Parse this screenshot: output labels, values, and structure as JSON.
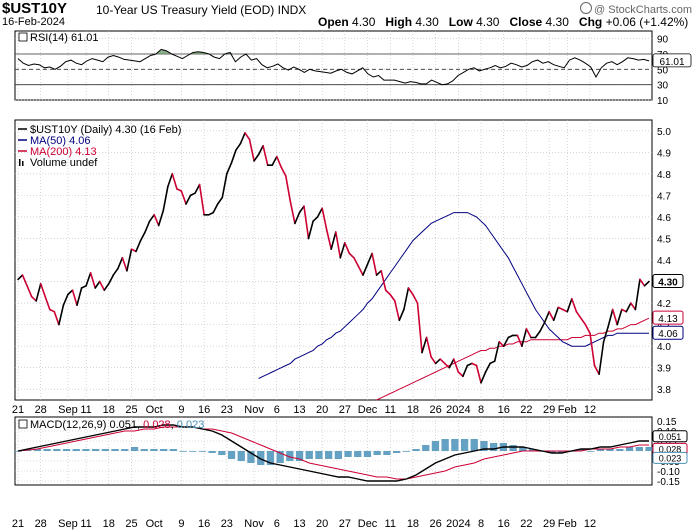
{
  "header": {
    "symbol": "$UST10Y",
    "description": "10-Year US Treasury Yield (EOD)",
    "exchange": "INDX",
    "date": "16-Feb-2024",
    "open_label": "Open",
    "open": "4.30",
    "high_label": "High",
    "high": "4.30",
    "low_label": "Low",
    "low": "4.30",
    "close_label": "Close",
    "close": "4.30",
    "chg_label": "Chg",
    "chg": "+0.06 (+1.42%)",
    "copyright": "@ StockCharts.com"
  },
  "colors": {
    "price_up": "#000000",
    "price_down": "#cc0033",
    "ma50": "#000080",
    "ma200": "#cc0033",
    "macd_hist": "#4a90b8",
    "rsi_line": "#000000",
    "grid": "#bbbbbb"
  },
  "chart_data": [
    {
      "type": "line",
      "panel": "rsi",
      "legend": "RSI(14) 61.01",
      "ylim": [
        10,
        100
      ],
      "ticks": [
        "90",
        "70",
        "50",
        "30",
        "10"
      ],
      "tick_values": [
        90,
        70,
        50,
        30,
        10
      ],
      "reference_lines": [
        70,
        50,
        30
      ],
      "current_label": "61.01",
      "values": [
        64,
        58,
        55,
        57,
        56,
        52,
        53,
        50,
        54,
        60,
        62,
        58,
        56,
        61,
        64,
        62,
        60,
        66,
        68,
        66,
        63,
        62,
        61,
        60,
        64,
        68,
        70,
        76,
        74,
        70,
        67,
        64,
        68,
        72,
        73,
        72,
        70,
        66,
        64,
        70,
        72,
        60,
        66,
        70,
        62,
        64,
        56,
        52,
        54,
        57,
        52,
        49,
        53,
        50,
        46,
        50,
        48,
        47,
        46,
        45,
        48,
        50,
        46,
        44,
        48,
        52,
        44,
        40,
        42,
        36,
        36,
        36,
        34,
        32,
        34,
        33,
        31,
        31,
        36,
        33,
        30,
        31,
        35,
        42,
        46,
        50,
        52,
        48,
        50,
        52,
        55,
        52,
        54,
        58,
        56,
        53,
        55,
        60,
        62,
        58,
        60,
        56,
        54,
        52,
        62,
        65,
        62,
        58,
        53,
        40,
        52,
        58,
        60,
        56,
        60,
        65,
        64,
        62,
        63,
        61
      ]
    },
    {
      "type": "line",
      "panel": "price",
      "ylim": [
        3.75,
        5.05
      ],
      "ticks": [
        "5.0",
        "4.9",
        "4.8",
        "4.7",
        "4.6",
        "4.5",
        "4.4",
        "4.3",
        "4.2",
        "4.1",
        "4.0",
        "3.9",
        "3.8"
      ],
      "tick_values": [
        5.0,
        4.9,
        4.8,
        4.7,
        4.6,
        4.5,
        4.4,
        4.3,
        4.2,
        4.1,
        4.0,
        3.9,
        3.8
      ],
      "x_labels": [
        "21",
        "28",
        "Sep",
        "11",
        "18",
        "25",
        "Oct",
        "9",
        "16",
        "23",
        "Nov",
        "6",
        "13",
        "20",
        "27",
        "Dec",
        "11",
        "18",
        "26",
        "2024",
        "8",
        "16",
        "22",
        "29",
        "Feb",
        "12"
      ],
      "x_label_index": [
        0,
        5,
        11,
        15,
        20,
        25,
        30,
        36,
        41,
        46,
        52,
        57,
        62,
        67,
        72,
        77,
        82,
        87,
        92,
        97,
        102,
        107,
        112,
        117,
        121,
        126
      ],
      "legend": [
        {
          "label": "$UST10Y (Daily) 4.30 (16 Feb)",
          "color": "#000000"
        },
        {
          "label": "MA(50) 4.06",
          "color": "#000080"
        },
        {
          "label": "MA(200) 4.13",
          "color": "#cc0033"
        },
        {
          "label": "Volume undef",
          "color": "#000000"
        }
      ],
      "series": [
        {
          "values": [
            4.31,
            4.33,
            4.28,
            4.23,
            4.21,
            4.29,
            4.23,
            4.17,
            4.16,
            4.1,
            4.19,
            4.24,
            4.26,
            4.19,
            4.27,
            4.28,
            4.34,
            4.27,
            4.3,
            4.26,
            4.29,
            4.33,
            4.36,
            4.41,
            4.35,
            4.45,
            4.44,
            4.49,
            4.53,
            4.58,
            4.61,
            4.56,
            4.63,
            4.74,
            4.8,
            4.73,
            4.72,
            4.66,
            4.7,
            4.71,
            4.75,
            4.61,
            4.61,
            4.62,
            4.66,
            4.69,
            4.8,
            4.85,
            4.91,
            4.94,
            4.99,
            4.96,
            4.86,
            4.89,
            4.93,
            4.84,
            4.84,
            4.88,
            4.83,
            4.79,
            4.67,
            4.57,
            4.62,
            4.65,
            4.5,
            4.58,
            4.6,
            4.64,
            4.54,
            4.45,
            4.53,
            4.41,
            4.48,
            4.43,
            4.41,
            4.37,
            4.33,
            4.38,
            4.43,
            4.33,
            4.35,
            4.26,
            4.24,
            4.21,
            4.12,
            4.17,
            4.27,
            4.24,
            4.2,
            3.97,
            4.04,
            3.95,
            3.92,
            3.94,
            3.92,
            3.9,
            3.94,
            3.88,
            3.86,
            3.91,
            3.92,
            3.91,
            3.83,
            3.88,
            3.92,
            3.93,
            4.02,
            4.0,
            4.04,
            4.05,
            4.05,
            4.0,
            4.08,
            4.04,
            4.04,
            4.07,
            4.11,
            4.16,
            4.12,
            4.18,
            4.17,
            4.16,
            4.22,
            4.16,
            4.13,
            4.1,
            4.06,
            3.91,
            3.87,
            4.02,
            4.09,
            4.17,
            4.1,
            4.17,
            4.16,
            4.2,
            4.17,
            4.31,
            4.28,
            4.3
          ]
        },
        {
          "name": "MA(50)",
          "values": [
            3.85,
            3.86,
            3.87,
            3.88,
            3.89,
            3.9,
            3.91,
            3.92,
            3.94,
            3.95,
            3.96,
            3.97,
            3.98,
            4.0,
            4.01,
            4.03,
            4.04,
            4.06,
            4.07,
            4.09,
            4.11,
            4.13,
            4.15,
            4.17,
            4.2,
            4.22,
            4.25,
            4.28,
            4.31,
            4.34,
            4.37,
            4.4,
            4.43,
            4.46,
            4.49,
            4.51,
            4.53,
            4.55,
            4.57,
            4.58,
            4.59,
            4.6,
            4.61,
            4.62,
            4.62,
            4.62,
            4.62,
            4.61,
            4.6,
            4.58,
            4.56,
            4.53,
            4.5,
            4.47,
            4.44,
            4.41,
            4.37,
            4.33,
            4.29,
            4.25,
            4.21,
            4.17,
            4.14,
            4.11,
            4.08,
            4.06,
            4.04,
            4.02,
            4.01,
            4.0,
            4.0,
            4.0,
            4.0,
            4.01,
            4.02,
            4.03,
            4.04,
            4.05,
            4.05,
            4.06,
            4.06,
            4.06,
            4.06,
            4.06,
            4.06,
            4.06,
            4.06
          ]
        },
        {
          "name": "MA(200)",
          "values": [
            3.75,
            3.76,
            3.77,
            3.78,
            3.79,
            3.8,
            3.81,
            3.82,
            3.83,
            3.84,
            3.85,
            3.86,
            3.87,
            3.88,
            3.89,
            3.9,
            3.91,
            3.92,
            3.93,
            3.94,
            3.95,
            3.96,
            3.97,
            3.98,
            3.98,
            3.99,
            3.99,
            4.0,
            4.0,
            4.01,
            4.01,
            4.02,
            4.02,
            4.02,
            4.03,
            4.03,
            4.03,
            4.03,
            4.03,
            4.03,
            4.03,
            4.03,
            4.03,
            4.04,
            4.04,
            4.04,
            4.05,
            4.05,
            4.05,
            4.06,
            4.06,
            4.07,
            4.07,
            4.08,
            4.08,
            4.09,
            4.1,
            4.1,
            4.11,
            4.12,
            4.13
          ]
        }
      ],
      "price_tags": [
        {
          "label": "4.30",
          "value": 4.3,
          "style": "dark"
        },
        {
          "label": "4.13",
          "value": 4.13,
          "style": "red"
        },
        {
          "label": "4.06",
          "value": 4.06,
          "style": "blue"
        }
      ]
    },
    {
      "type": "line",
      "panel": "macd",
      "legend": {
        "prefix": "MACD(12,26,9)",
        "macd": "0.051",
        "signal": "0.028",
        "hist": "0.023"
      },
      "ylim": [
        -0.17,
        0.17
      ],
      "ticks": [
        "0.15",
        "0.10",
        "0.05",
        "0.00",
        "-0.05",
        "-0.10",
        "-0.15"
      ],
      "tick_values": [
        0.15,
        0.1,
        0.05,
        0.0,
        -0.05,
        -0.1,
        -0.15
      ],
      "tag_labels": [
        "0.051",
        "0.028",
        "0.023"
      ],
      "macd": [
        0.0,
        0.01,
        0.02,
        0.03,
        0.04,
        0.05,
        0.06,
        0.07,
        0.08,
        0.09,
        0.1,
        0.11,
        0.12,
        0.12,
        0.12,
        0.13,
        0.13,
        0.12,
        0.12,
        0.11,
        0.1,
        0.08,
        0.05,
        0.02,
        -0.01,
        -0.04,
        -0.06,
        -0.07,
        -0.08,
        -0.09,
        -0.1,
        -0.11,
        -0.12,
        -0.13,
        -0.13,
        -0.14,
        -0.15,
        -0.15,
        -0.15,
        -0.15,
        -0.14,
        -0.12,
        -0.09,
        -0.06,
        -0.04,
        -0.02,
        -0.01,
        0.0,
        0.01,
        0.01,
        0.02,
        0.02,
        0.02,
        0.01,
        0.0,
        -0.01,
        -0.01,
        0.0,
        0.01,
        0.01,
        0.02,
        0.02,
        0.03,
        0.04,
        0.05,
        0.05
      ],
      "signal": [
        0.0,
        0.005,
        0.01,
        0.02,
        0.03,
        0.04,
        0.05,
        0.06,
        0.07,
        0.08,
        0.09,
        0.1,
        0.1,
        0.11,
        0.11,
        0.12,
        0.12,
        0.12,
        0.12,
        0.11,
        0.11,
        0.1,
        0.09,
        0.07,
        0.05,
        0.03,
        0.01,
        -0.01,
        -0.03,
        -0.04,
        -0.06,
        -0.07,
        -0.08,
        -0.09,
        -0.1,
        -0.11,
        -0.12,
        -0.13,
        -0.13,
        -0.14,
        -0.14,
        -0.13,
        -0.12,
        -0.11,
        -0.1,
        -0.08,
        -0.07,
        -0.06,
        -0.04,
        -0.03,
        -0.02,
        -0.01,
        0.0,
        0.0,
        0.0,
        0.0,
        0.0,
        0.0,
        0.0,
        0.01,
        0.01,
        0.01,
        0.02,
        0.02,
        0.03,
        0.03
      ],
      "hist": [
        0.0,
        0.005,
        0.01,
        0.01,
        0.01,
        0.01,
        0.01,
        0.01,
        0.01,
        0.01,
        0.01,
        0.01,
        0.02,
        0.01,
        0.01,
        0.01,
        0.01,
        0.0,
        0.0,
        0.0,
        -0.01,
        -0.02,
        -0.04,
        -0.05,
        -0.06,
        -0.07,
        -0.07,
        -0.06,
        -0.05,
        -0.05,
        -0.04,
        -0.04,
        -0.04,
        -0.04,
        -0.03,
        -0.03,
        -0.03,
        -0.02,
        -0.02,
        -0.01,
        0.0,
        0.01,
        0.03,
        0.05,
        0.06,
        0.06,
        0.06,
        0.06,
        0.05,
        0.04,
        0.04,
        0.03,
        0.02,
        0.01,
        0.0,
        -0.01,
        -0.01,
        0.0,
        0.01,
        0.0,
        0.01,
        0.01,
        0.01,
        0.02,
        0.02,
        0.02
      ],
      "x_labels": [
        "21",
        "28",
        "Sep",
        "11",
        "18",
        "25",
        "Oct",
        "9",
        "16",
        "23",
        "Nov",
        "6",
        "13",
        "20",
        "27",
        "Dec",
        "11",
        "18",
        "26",
        "2024",
        "8",
        "16",
        "22",
        "29",
        "Feb",
        "12"
      ]
    }
  ]
}
